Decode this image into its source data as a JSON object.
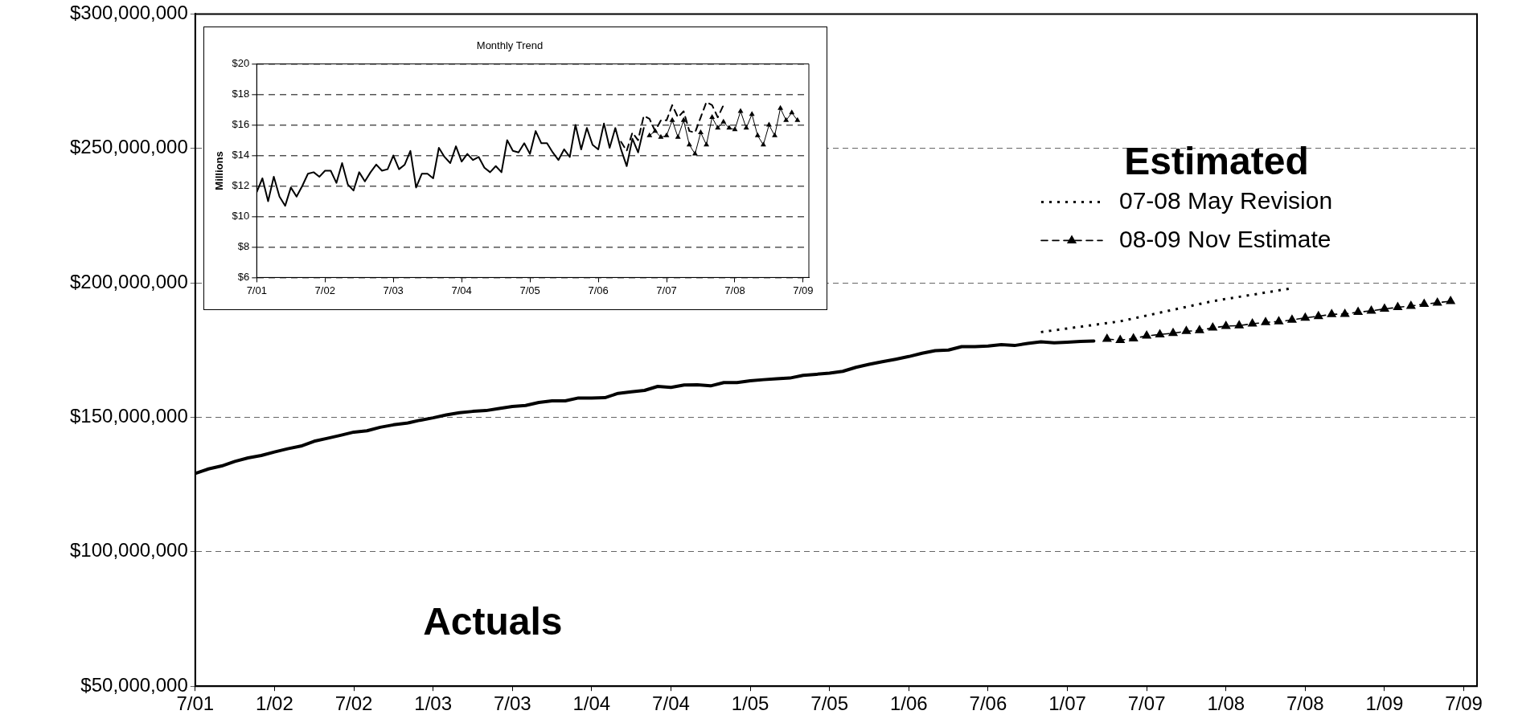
{
  "chart_data": [
    {
      "type": "line",
      "legend": "top right",
      "legend_title": "Estimated",
      "grid": "y",
      "xlim": [
        "2001-07",
        "2009-08"
      ],
      "xticks": [
        {
          "value": "2001-07",
          "label": "7/01"
        },
        {
          "value": "2002-01",
          "label": "1/02"
        },
        {
          "value": "2002-07",
          "label": "7/02"
        },
        {
          "value": "2003-01",
          "label": "1/03"
        },
        {
          "value": "2003-07",
          "label": "7/03"
        },
        {
          "value": "2004-01",
          "label": "1/04"
        },
        {
          "value": "2004-07",
          "label": "7/04"
        },
        {
          "value": "2005-01",
          "label": "1/05"
        },
        {
          "value": "2005-07",
          "label": "7/05"
        },
        {
          "value": "2006-01",
          "label": "1/06"
        },
        {
          "value": "2006-07",
          "label": "7/06"
        },
        {
          "value": "2007-01",
          "label": "1/07"
        },
        {
          "value": "2007-07",
          "label": "7/07"
        },
        {
          "value": "2008-01",
          "label": "1/08"
        },
        {
          "value": "2008-07",
          "label": "7/08"
        },
        {
          "value": "2009-01",
          "label": "1/09"
        },
        {
          "value": "2009-07",
          "label": "7/09"
        }
      ],
      "ylim": [
        50000000,
        300000000
      ],
      "yticks": [
        {
          "value": 50000000,
          "label": "$50,000,000"
        },
        {
          "value": 100000000,
          "label": "$100,000,000"
        },
        {
          "value": 150000000,
          "label": "$150,000,000"
        },
        {
          "value": 200000000,
          "label": "$200,000,000"
        },
        {
          "value": 250000000,
          "label": "$250,000,000"
        },
        {
          "value": 300000000,
          "label": "$300,000,000"
        }
      ],
      "annotations": [
        "Actuals"
      ],
      "series": [
        {
          "color": "#000000",
          "line_style": "solid",
          "marker": "none",
          "x": [
            "2001-07",
            "2001-08",
            "2001-09",
            "2001-10",
            "2001-11",
            "2001-12",
            "2002-01",
            "2002-02",
            "2002-03",
            "2002-04",
            "2002-05",
            "2002-06",
            "2002-07",
            "2002-08",
            "2002-09",
            "2002-10",
            "2002-11",
            "2002-12",
            "2003-01",
            "2003-02",
            "2003-03",
            "2003-04",
            "2003-05",
            "2003-06",
            "2003-07",
            "2003-08",
            "2003-09",
            "2003-10",
            "2003-11",
            "2003-12",
            "2004-01",
            "2004-02",
            "2004-03",
            "2004-04",
            "2004-05",
            "2004-06",
            "2004-07",
            "2004-08",
            "2004-09",
            "2004-10",
            "2004-11",
            "2004-12",
            "2005-01",
            "2005-02",
            "2005-03",
            "2005-04",
            "2005-05",
            "2005-06",
            "2005-07",
            "2005-08",
            "2005-09",
            "2005-10",
            "2005-11",
            "2005-12",
            "2006-01",
            "2006-02",
            "2006-03",
            "2006-04",
            "2006-05",
            "2006-06",
            "2006-07",
            "2006-08",
            "2006-09",
            "2006-10",
            "2006-11",
            "2006-12",
            "2007-01",
            "2007-02",
            "2007-03"
          ],
          "values": [
            129100000,
            130800000,
            131900000,
            133600000,
            134900000,
            135800000,
            137100000,
            138300000,
            139300000,
            141100000,
            142200000,
            143300000,
            144500000,
            145000000,
            146300000,
            147200000,
            147800000,
            148900000,
            149800000,
            150900000,
            151700000,
            152200000,
            152500000,
            153300000,
            154000000,
            154400000,
            155500000,
            156100000,
            156100000,
            157200000,
            157200000,
            157300000,
            158900000,
            159500000,
            160000000,
            161500000,
            161100000,
            162000000,
            162100000,
            161700000,
            162900000,
            162900000,
            163600000,
            164000000,
            164300000,
            164600000,
            165600000,
            166000000,
            166400000,
            167100000,
            168600000,
            169700000,
            170700000,
            171600000,
            172600000,
            173800000,
            174800000,
            175000000,
            176300000,
            176300000,
            176500000,
            177000000,
            176700000,
            177500000,
            178100000,
            177700000,
            177900000,
            178200000,
            178400000
          ]
        },
        {
          "name": "07-08 May Revision",
          "color": "#000000",
          "line_style": "dotted",
          "marker": "none",
          "x": [
            "2006-11",
            "2007-05",
            "2007-12",
            "2008-06"
          ],
          "values": [
            181700000,
            185700000,
            193200000,
            198000000
          ]
        },
        {
          "name": "08-09 Nov Estimate",
          "color": "#000000",
          "line_style": "dashed",
          "marker": "triangle",
          "x": [
            "2007-04",
            "2007-05",
            "2007-06",
            "2007-07",
            "2007-08",
            "2007-09",
            "2007-10",
            "2007-11",
            "2007-12",
            "2008-01",
            "2008-02",
            "2008-03",
            "2008-04",
            "2008-05",
            "2008-06",
            "2008-07",
            "2008-08",
            "2008-09",
            "2008-10",
            "2008-11",
            "2008-12",
            "2009-01",
            "2009-02",
            "2009-03",
            "2009-04",
            "2009-05",
            "2009-06"
          ],
          "values": [
            179100000,
            178700000,
            179300000,
            180300000,
            180800000,
            181300000,
            182000000,
            182300000,
            183300000,
            183900000,
            184100000,
            184800000,
            185300000,
            185600000,
            186200000,
            187000000,
            187600000,
            188300000,
            188400000,
            189100000,
            189600000,
            190300000,
            190900000,
            191400000,
            192100000,
            192600000,
            193200000
          ]
        }
      ]
    },
    {
      "type": "line",
      "title": "Monthly Trend",
      "ylabel": "Millions",
      "grid": "y",
      "xlim": [
        "2001-07",
        "2009-08"
      ],
      "xticks": [
        {
          "value": "2001-07",
          "label": "7/01"
        },
        {
          "value": "2002-07",
          "label": "7/02"
        },
        {
          "value": "2003-07",
          "label": "7/03"
        },
        {
          "value": "2004-07",
          "label": "7/04"
        },
        {
          "value": "2005-07",
          "label": "7/05"
        },
        {
          "value": "2006-07",
          "label": "7/06"
        },
        {
          "value": "2007-07",
          "label": "7/07"
        },
        {
          "value": "2008-07",
          "label": "7/08"
        },
        {
          "value": "2009-07",
          "label": "7/09"
        }
      ],
      "ylim": [
        6,
        20
      ],
      "yticks": [
        {
          "value": 6,
          "label": "$6"
        },
        {
          "value": 8,
          "label": "$8"
        },
        {
          "value": 10,
          "label": "$10"
        },
        {
          "value": 12,
          "label": "$12"
        },
        {
          "value": 14,
          "label": "$14"
        },
        {
          "value": 16,
          "label": "$16"
        },
        {
          "value": 18,
          "label": "$18"
        },
        {
          "value": 20,
          "label": "$20"
        }
      ],
      "series": [
        {
          "color": "#000000",
          "line_style": "solid",
          "marker": "none",
          "x": [
            "2001-07",
            "2001-08",
            "2001-09",
            "2001-10",
            "2001-11",
            "2001-12",
            "2002-01",
            "2002-02",
            "2002-03",
            "2002-04",
            "2002-05",
            "2002-06",
            "2002-07",
            "2002-08",
            "2002-09",
            "2002-10",
            "2002-11",
            "2002-12",
            "2003-01",
            "2003-02",
            "2003-03",
            "2003-04",
            "2003-05",
            "2003-06",
            "2003-07",
            "2003-08",
            "2003-09",
            "2003-10",
            "2003-11",
            "2003-12",
            "2004-01",
            "2004-02",
            "2004-03",
            "2004-04",
            "2004-05",
            "2004-06",
            "2004-07",
            "2004-08",
            "2004-09",
            "2004-10",
            "2004-11",
            "2004-12",
            "2005-01",
            "2005-02",
            "2005-03",
            "2005-04",
            "2005-05",
            "2005-06",
            "2005-07",
            "2005-08",
            "2005-09",
            "2005-10",
            "2005-11",
            "2005-12",
            "2006-01",
            "2006-02",
            "2006-03",
            "2006-04",
            "2006-05",
            "2006-06",
            "2006-07",
            "2006-08",
            "2006-09",
            "2006-10",
            "2006-11",
            "2006-12",
            "2007-01",
            "2007-02",
            "2007-03"
          ],
          "values": [
            11.6,
            12.5,
            11.0,
            12.6,
            11.3,
            10.7,
            11.9,
            11.3,
            12.0,
            12.8,
            12.9,
            12.6,
            13.0,
            13.0,
            12.2,
            13.5,
            12.1,
            11.7,
            12.9,
            12.3,
            12.9,
            13.4,
            13.0,
            13.1,
            14.0,
            13.1,
            13.4,
            14.3,
            11.9,
            12.8,
            12.8,
            12.5,
            14.5,
            13.9,
            13.5,
            14.6,
            13.6,
            14.1,
            13.7,
            13.9,
            13.2,
            12.9,
            13.3,
            12.9,
            15.0,
            14.3,
            14.2,
            14.8,
            14.1,
            15.6,
            14.8,
            14.8,
            14.2,
            13.7,
            14.4,
            13.9,
            16.0,
            14.4,
            15.8,
            14.7,
            14.4,
            16.1,
            14.5,
            15.8,
            14.4,
            13.3,
            15.1,
            14.2,
            15.8
          ]
        },
        {
          "color": "#000000",
          "line_style": "dashed",
          "marker": "none",
          "x": [
            "2006-11",
            "2006-12",
            "2007-01",
            "2007-02",
            "2007-03",
            "2007-04",
            "2007-05",
            "2007-06",
            "2007-07",
            "2007-08",
            "2007-09",
            "2007-10",
            "2007-11",
            "2007-12",
            "2008-01",
            "2008-02",
            "2008-03",
            "2008-04",
            "2008-05"
          ],
          "values": [
            14.9,
            14.3,
            15.5,
            15.0,
            16.6,
            16.4,
            15.6,
            16.3,
            16.3,
            17.3,
            16.5,
            16.9,
            15.6,
            15.5,
            16.5,
            17.5,
            17.3,
            16.5,
            17.3
          ]
        },
        {
          "color": "#000000",
          "line_style": "solid",
          "marker": "triangle",
          "x": [
            "2007-04",
            "2007-05",
            "2007-06",
            "2007-07",
            "2007-08",
            "2007-09",
            "2007-10",
            "2007-11",
            "2007-12",
            "2008-01",
            "2008-02",
            "2008-03",
            "2008-04",
            "2008-05",
            "2008-06",
            "2008-07",
            "2008-08",
            "2008-09",
            "2008-10",
            "2008-11",
            "2008-12",
            "2009-01",
            "2009-02",
            "2009-03",
            "2009-04",
            "2009-05",
            "2009-06"
          ],
          "values": [
            15.3,
            15.6,
            15.2,
            15.3,
            16.3,
            15.2,
            16.3,
            14.7,
            14.1,
            15.5,
            14.7,
            16.5,
            15.8,
            16.2,
            15.8,
            15.7,
            16.9,
            15.8,
            16.7,
            15.3,
            14.7,
            16.0,
            15.3,
            17.1,
            16.3,
            16.8,
            16.3
          ]
        }
      ]
    }
  ]
}
